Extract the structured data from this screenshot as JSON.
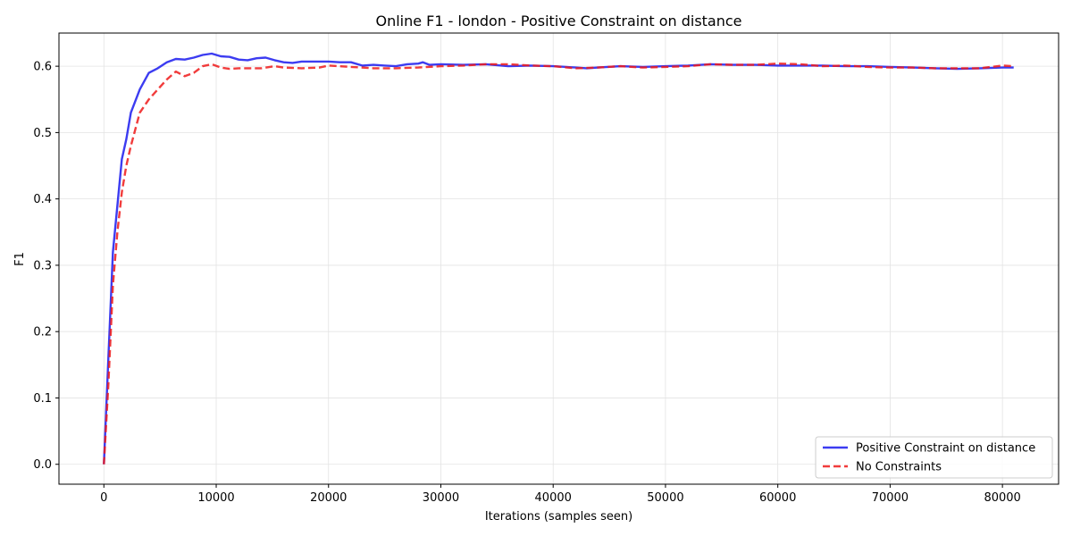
{
  "chart_data": {
    "type": "line",
    "title": "Online F1 - london - Positive Constraint on distance",
    "xlabel": "Iterations (samples seen)",
    "ylabel": "F1",
    "xlim": [
      -4000,
      85000
    ],
    "ylim": [
      -0.03,
      0.65
    ],
    "xticks": [
      0,
      10000,
      20000,
      30000,
      40000,
      50000,
      60000,
      70000,
      80000
    ],
    "yticks": [
      0.0,
      0.1,
      0.2,
      0.3,
      0.4,
      0.5,
      0.6
    ],
    "ytick_labels": [
      "0.0",
      "0.1",
      "0.2",
      "0.3",
      "0.4",
      "0.5",
      "0.6"
    ],
    "grid": true,
    "legend_position": "lower-right",
    "series": [
      {
        "name": "Positive Constraint on distance",
        "color": "#1a1aee",
        "style": "solid",
        "x": [
          0,
          400,
          800,
          1200,
          1600,
          2000,
          2400,
          3200,
          4000,
          4800,
          5600,
          6400,
          7200,
          8000,
          8800,
          9600,
          10400,
          11200,
          12000,
          12800,
          13600,
          14400,
          15200,
          16000,
          16800,
          17600,
          18400,
          19200,
          20000,
          21000,
          22000,
          23000,
          24000,
          25000,
          26000,
          27000,
          28000,
          28400,
          29000,
          30000,
          32000,
          34000,
          36000,
          38000,
          40000,
          42000,
          43000,
          44000,
          46000,
          48000,
          50000,
          52000,
          54000,
          56000,
          58000,
          60000,
          62000,
          64000,
          66000,
          68000,
          70000,
          72000,
          74000,
          76000,
          78000,
          80000,
          81000
        ],
        "y": [
          0.0,
          0.16,
          0.32,
          0.39,
          0.46,
          0.49,
          0.53,
          0.565,
          0.59,
          0.597,
          0.606,
          0.611,
          0.61,
          0.613,
          0.617,
          0.619,
          0.615,
          0.614,
          0.61,
          0.609,
          0.612,
          0.613,
          0.609,
          0.606,
          0.605,
          0.607,
          0.607,
          0.607,
          0.607,
          0.606,
          0.606,
          0.601,
          0.602,
          0.601,
          0.6,
          0.603,
          0.604,
          0.606,
          0.602,
          0.603,
          0.602,
          0.603,
          0.6,
          0.601,
          0.6,
          0.598,
          0.597,
          0.598,
          0.6,
          0.599,
          0.6,
          0.601,
          0.603,
          0.602,
          0.602,
          0.601,
          0.601,
          0.601,
          0.6,
          0.6,
          0.599,
          0.598,
          0.597,
          0.596,
          0.597,
          0.598,
          0.598
        ]
      },
      {
        "name": "No Constraints",
        "color": "#ee1a1a",
        "style": "dashed",
        "x": [
          0,
          400,
          800,
          1200,
          1600,
          2000,
          2400,
          3200,
          4000,
          4800,
          5600,
          6400,
          7200,
          8000,
          8800,
          9600,
          10400,
          11200,
          12000,
          14000,
          15200,
          16000,
          17600,
          19200,
          20000,
          21000,
          22000,
          24000,
          26000,
          28000,
          30000,
          32000,
          34000,
          36000,
          38000,
          40000,
          42000,
          44000,
          46000,
          48000,
          50000,
          52000,
          54000,
          56000,
          58000,
          60000,
          62000,
          64000,
          66000,
          68000,
          70000,
          72000,
          74000,
          76000,
          78000,
          80000,
          81000
        ],
        "y": [
          0.0,
          0.12,
          0.27,
          0.35,
          0.41,
          0.45,
          0.48,
          0.53,
          0.55,
          0.565,
          0.58,
          0.592,
          0.585,
          0.59,
          0.6,
          0.603,
          0.598,
          0.596,
          0.597,
          0.597,
          0.6,
          0.598,
          0.597,
          0.598,
          0.601,
          0.6,
          0.599,
          0.597,
          0.597,
          0.598,
          0.6,
          0.601,
          0.603,
          0.603,
          0.601,
          0.6,
          0.597,
          0.598,
          0.6,
          0.598,
          0.599,
          0.6,
          0.603,
          0.602,
          0.602,
          0.604,
          0.603,
          0.6,
          0.601,
          0.599,
          0.598,
          0.598,
          0.597,
          0.597,
          0.597,
          0.601,
          0.6
        ]
      }
    ]
  }
}
